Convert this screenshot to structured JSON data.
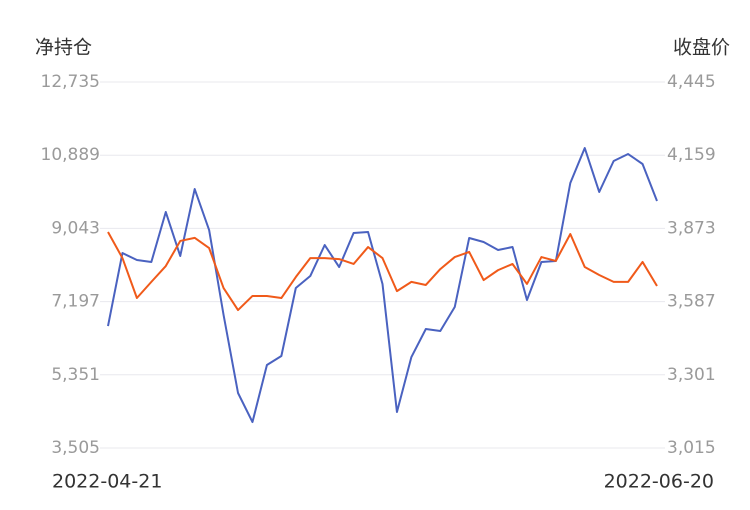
{
  "chart_data": {
    "type": "line",
    "y_title": "净持仓",
    "y2_title": "收盘价",
    "categories": [
      "2022-04-21",
      null,
      null,
      null,
      null,
      null,
      null,
      null,
      null,
      null,
      null,
      null,
      null,
      null,
      null,
      null,
      null,
      null,
      null,
      null,
      null,
      null,
      null,
      null,
      null,
      null,
      null,
      null,
      null,
      null,
      null,
      null,
      null,
      null,
      null,
      null,
      null,
      null,
      "2022-06-20"
    ],
    "series": [
      {
        "name": "净持仓",
        "color": "#4a62c0",
        "axis": "y",
        "values": [
          6581,
          8422,
          8246,
          8195,
          9456,
          8347,
          10036,
          9002,
          6859,
          4892,
          4160,
          5598,
          5825,
          7540,
          7842,
          8624,
          8069,
          8927,
          8952,
          7641,
          4412,
          5799,
          6506,
          6455,
          7060,
          8801,
          8700,
          8498,
          8574,
          7237,
          8195,
          8221,
          10188,
          11070,
          9961,
          10743,
          10919,
          10667,
          9734
        ]
      },
      {
        "name": "收盘价",
        "color": "#f05a1a",
        "axis": "y2",
        "values": [
          3859,
          3757,
          3601,
          3664,
          3726,
          3824,
          3836,
          3796,
          3640,
          3554,
          3609,
          3609,
          3601,
          3683,
          3757,
          3757,
          3753,
          3734,
          3800,
          3757,
          3628,
          3664,
          3652,
          3714,
          3761,
          3781,
          3671,
          3710,
          3734,
          3656,
          3761,
          3746,
          3851,
          3722,
          3691,
          3664,
          3664,
          3742,
          3648
        ]
      }
    ],
    "ylim": [
      3505,
      12735
    ],
    "yticks": [
      {
        "value": 3505,
        "label": "3,505"
      },
      {
        "value": 5351,
        "label": "5,351"
      },
      {
        "value": 7197,
        "label": "7,197"
      },
      {
        "value": 9043,
        "label": "9,043"
      },
      {
        "value": 10889,
        "label": "10,889"
      },
      {
        "value": 12735,
        "label": "12,735"
      }
    ],
    "y2lim": [
      3015,
      4445
    ],
    "y2ticks": [
      {
        "value": 3015,
        "label": "3,015"
      },
      {
        "value": 3301,
        "label": "3,301"
      },
      {
        "value": 3587,
        "label": "3,587"
      },
      {
        "value": 3873,
        "label": "3,873"
      },
      {
        "value": 4159,
        "label": "4,159"
      },
      {
        "value": 4445,
        "label": "4,445"
      }
    ],
    "grid": true
  }
}
